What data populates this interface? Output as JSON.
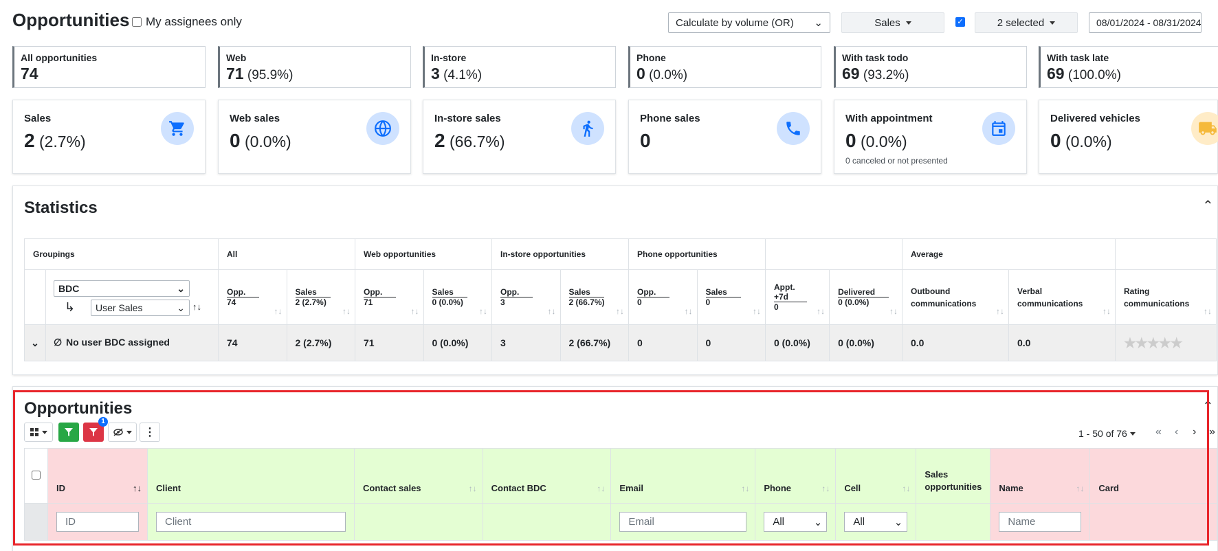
{
  "header": {
    "title": "Opportunities",
    "assignees_label": "My assignees only",
    "calc_select": "Calculate by volume (OR)",
    "type_button": "Sales",
    "selected_button": "2 selected",
    "date_range": "08/01/2024 - 08/31/2024"
  },
  "mini_cards": [
    {
      "label": "All opportunities",
      "value": "74",
      "pct": ""
    },
    {
      "label": "Web",
      "value": "71",
      "pct": "(95.9%)"
    },
    {
      "label": "In-store",
      "value": "3",
      "pct": "(4.1%)"
    },
    {
      "label": "Phone",
      "value": "0",
      "pct": "(0.0%)"
    },
    {
      "label": "With task todo",
      "value": "69",
      "pct": "(93.2%)"
    },
    {
      "label": "With task late",
      "value": "69",
      "pct": "(100.0%)"
    }
  ],
  "cards": [
    {
      "label": "Sales",
      "value": "2",
      "pct": "(2.7%)",
      "icon": "cart-icon"
    },
    {
      "label": "Web sales",
      "value": "0",
      "pct": "(0.0%)",
      "icon": "globe-icon"
    },
    {
      "label": "In-store sales",
      "value": "2",
      "pct": "(66.7%)",
      "icon": "walking-icon"
    },
    {
      "label": "Phone sales",
      "value": "0",
      "pct": "",
      "icon": "phone-icon"
    },
    {
      "label": "With appointment",
      "value": "0",
      "pct": "(0.0%)",
      "sub": "0 canceled or not presented",
      "icon": "calendar-icon"
    },
    {
      "label": "Delivered vehicles",
      "value": "0",
      "pct": "(0.0%)",
      "icon": "truck-icon"
    }
  ],
  "statistics": {
    "title": "Statistics",
    "groups": [
      "Groupings",
      "All",
      "Web opportunities",
      "In-store opportunities",
      "Phone opportunities",
      "",
      "Average"
    ],
    "grouping_select_1": "BDC",
    "grouping_select_2": "User Sales",
    "columns": [
      {
        "title": "Opp.",
        "sub": "74"
      },
      {
        "title": "Sales",
        "sub": "2 (2.7%)"
      },
      {
        "title": "Opp.",
        "sub": "71"
      },
      {
        "title": "Sales",
        "sub": "0 (0.0%)"
      },
      {
        "title": "Opp.",
        "sub": "3"
      },
      {
        "title": "Sales",
        "sub": "2 (66.7%)"
      },
      {
        "title": "Opp.",
        "sub": "0"
      },
      {
        "title": "Sales",
        "sub": "0"
      },
      {
        "title": "Appt. +7d",
        "sub": "0"
      },
      {
        "title": "Delivered",
        "sub": "0 (0.0%)"
      }
    ],
    "avg_columns": [
      "Outbound communications",
      "Verbal communications",
      "Rating communications"
    ],
    "row": {
      "symbol": "∅",
      "label": "No user BDC assigned",
      "values": [
        "74",
        "2 (2.7%)",
        "71",
        "0 (0.0%)",
        "3",
        "2 (66.7%)",
        "0",
        "0",
        "0 (0.0%)",
        "0 (0.0%)",
        "0.0",
        "0.0"
      ],
      "rating": 0
    }
  },
  "opportunities": {
    "title": "Opportunities",
    "filter_badge": "1",
    "pagination": "1 - 50 of 76",
    "columns": [
      "ID",
      "Client",
      "Contact sales",
      "Contact BDC",
      "Email",
      "Phone",
      "Cell",
      "Sales opportunities",
      "Name",
      "Card"
    ],
    "filters": {
      "id_placeholder": "ID",
      "client_placeholder": "Client",
      "email_placeholder": "Email",
      "phone_value": "All",
      "cell_value": "All",
      "name_placeholder": "Name"
    }
  },
  "colors": {
    "primary": "#0d6efd",
    "success": "#28a745",
    "danger": "#dc3545",
    "highlight": "#e8242a"
  }
}
